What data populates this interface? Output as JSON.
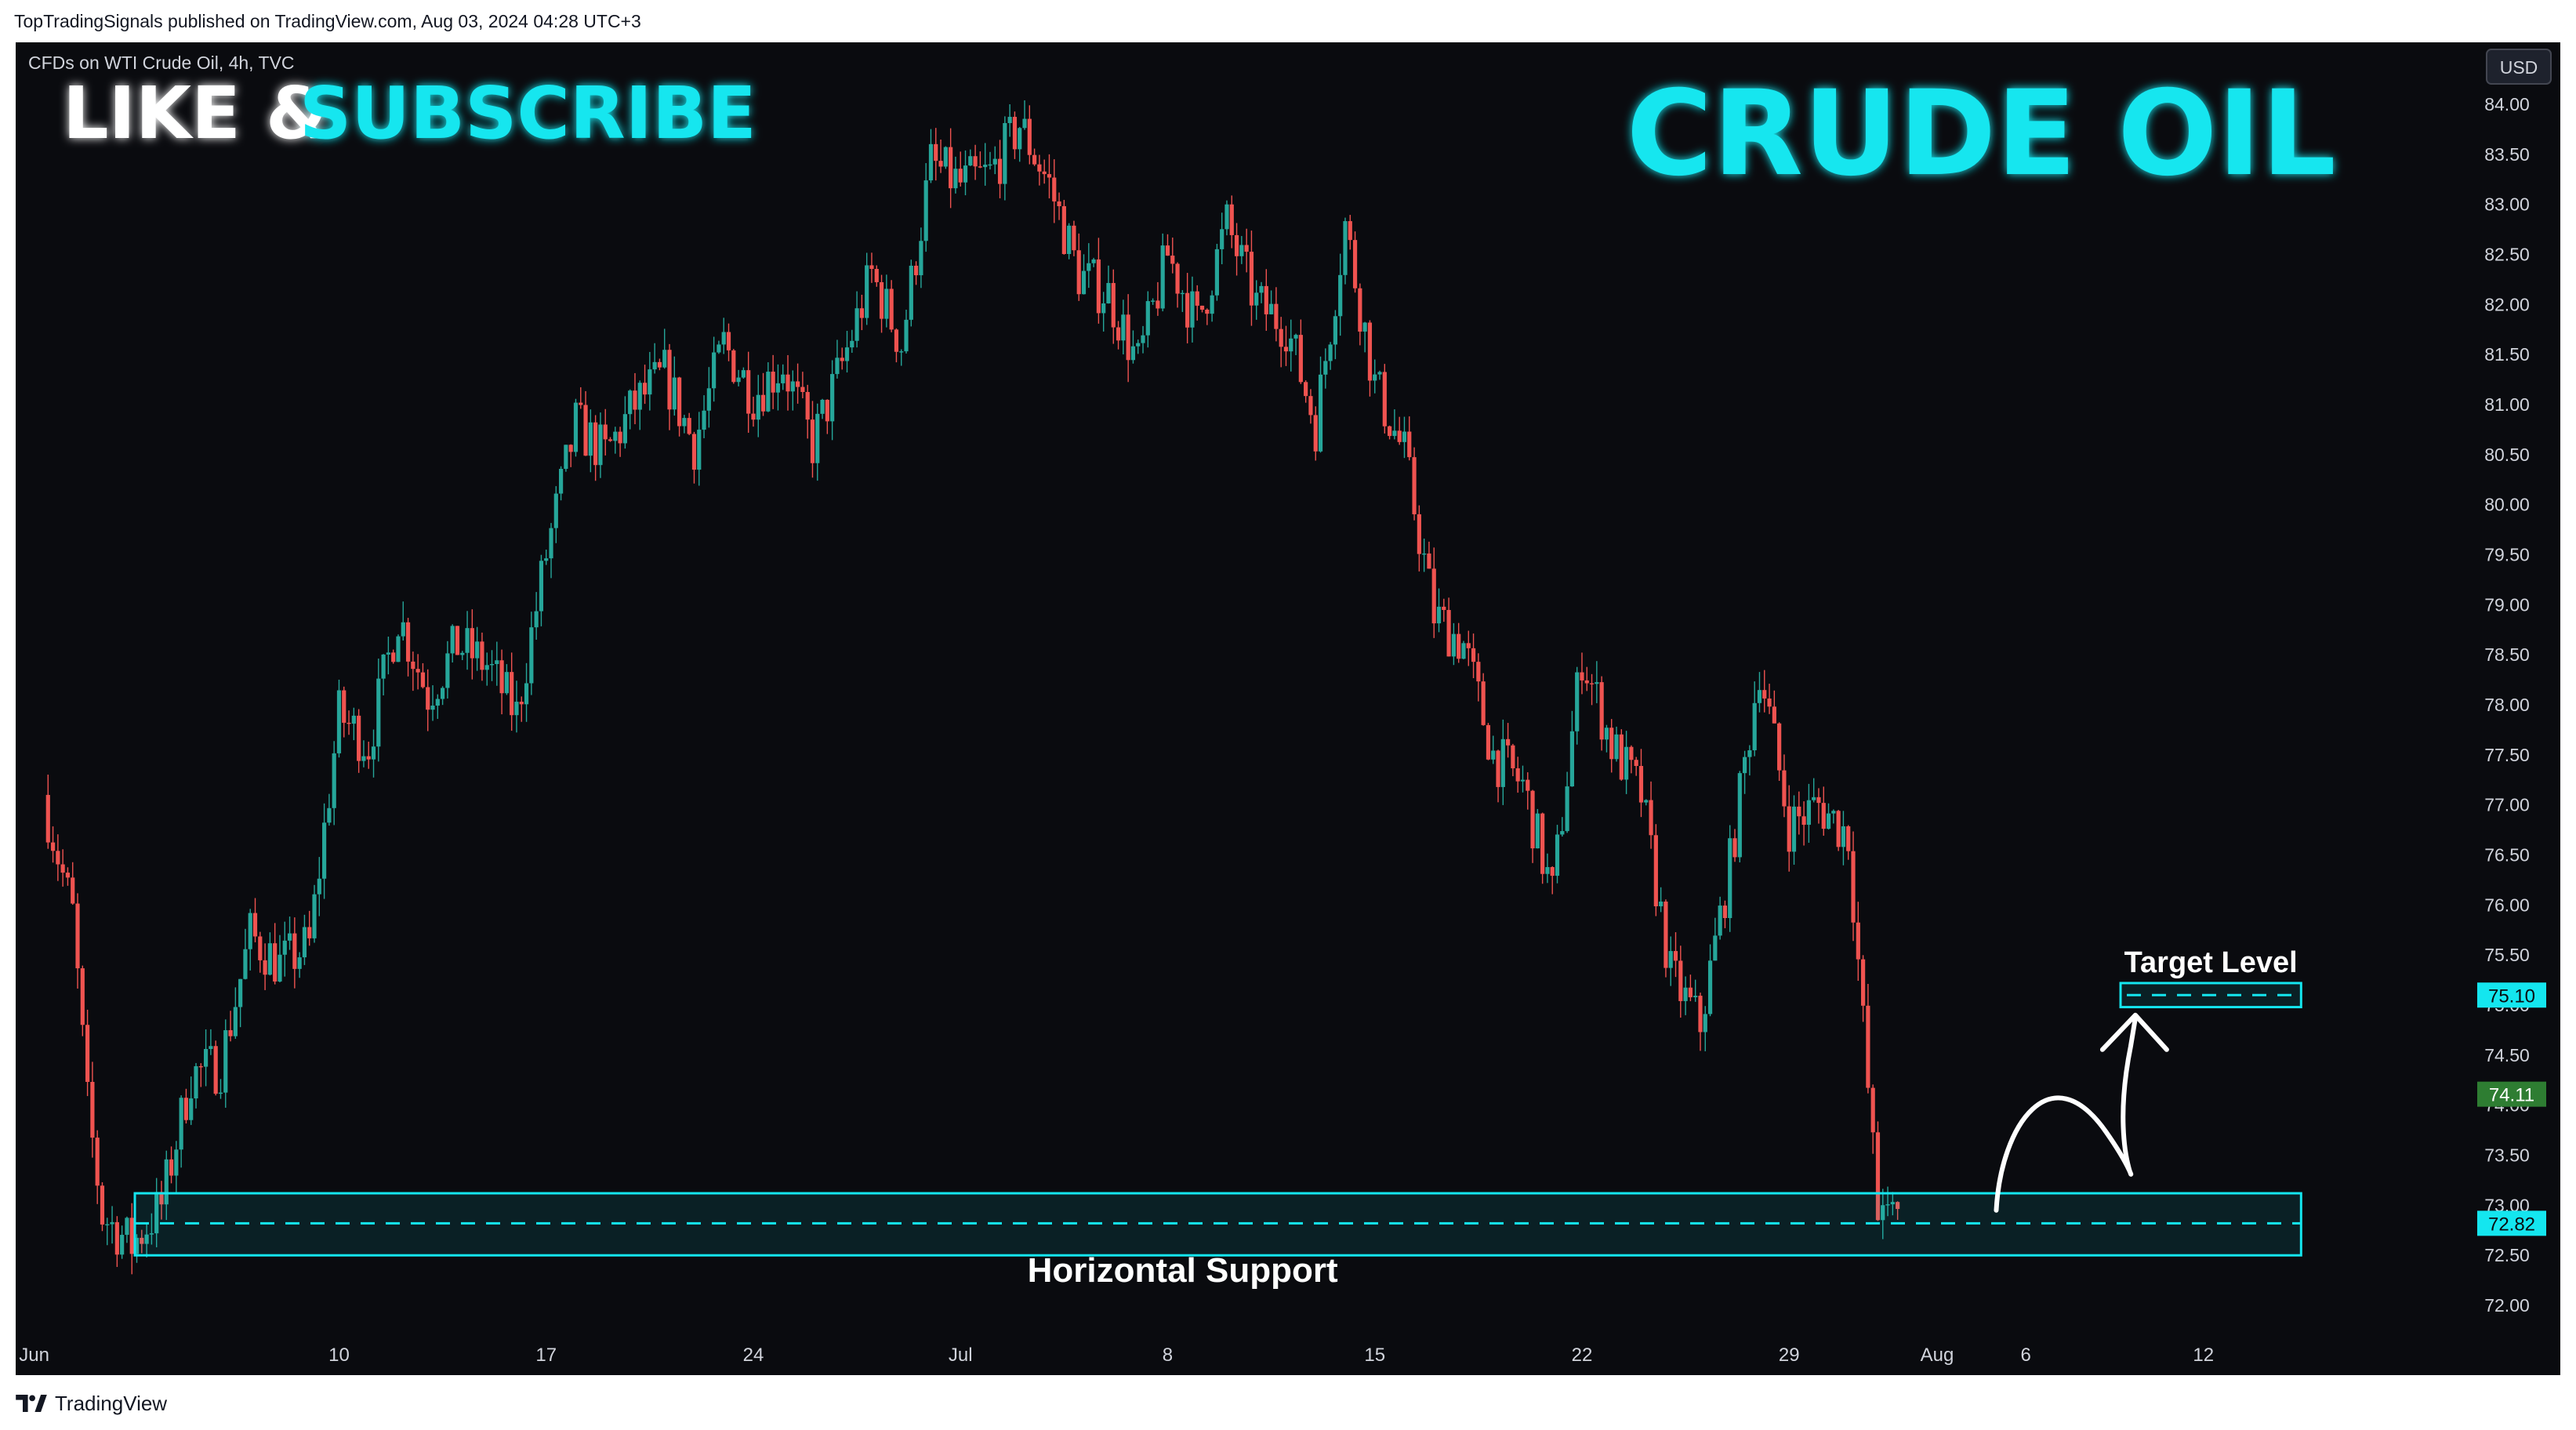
{
  "header": {
    "published": "TopTradingSignals published on TradingView.com, Aug 03, 2024 04:28 UTC+3"
  },
  "footer": {
    "brand": "TradingView"
  },
  "colors": {
    "background": "#0a0b0f",
    "up": "#26a69a",
    "down": "#ef5350",
    "accent": "#14e6ef",
    "text": "#d1d4dc"
  },
  "chart_data": {
    "type": "candlestick",
    "symbol_line": "CFDs on WTI Crude Oil, 4h, TVC",
    "currency": "USD",
    "promo_left": "LIKE &",
    "promo_right": "SUBSCRIBE",
    "title": "CRUDE OIL",
    "y_axis": {
      "min": 71.75,
      "max": 84.3,
      "ticks": [
        "84.00",
        "83.50",
        "83.00",
        "82.50",
        "82.00",
        "81.50",
        "81.00",
        "80.50",
        "80.00",
        "79.50",
        "79.00",
        "78.50",
        "78.00",
        "77.50",
        "77.00",
        "76.50",
        "76.00",
        "75.50",
        "75.00",
        "74.50",
        "74.00",
        "73.50",
        "73.00",
        "72.50",
        "72.00"
      ]
    },
    "x_axis": {
      "ticks": [
        {
          "label": "Jun",
          "d": -0.3
        },
        {
          "label": "10",
          "d": 10
        },
        {
          "label": "17",
          "d": 17
        },
        {
          "label": "24",
          "d": 24
        },
        {
          "label": "Jul",
          "d": 31
        },
        {
          "label": "8",
          "d": 38
        },
        {
          "label": "15",
          "d": 45
        },
        {
          "label": "22",
          "d": 52
        },
        {
          "label": "29",
          "d": 59
        },
        {
          "label": "Aug",
          "d": 64
        },
        {
          "label": "6",
          "d": 67
        },
        {
          "label": "12",
          "d": 73
        }
      ]
    },
    "price_labels": [
      {
        "value": "75.10",
        "price": 75.1,
        "style": "target"
      },
      {
        "value": "74.11",
        "price": 74.11,
        "style": "last"
      },
      {
        "value": "72.82",
        "price": 72.82,
        "style": "support"
      }
    ],
    "annotations": {
      "support_label": "Horizontal Support",
      "support_zone": {
        "from": 72.5,
        "to": 73.12,
        "dashed": 72.82,
        "start_d": 3.1,
        "end_d": 76.3
      },
      "target_label": "Target Level",
      "target_zone": {
        "from": 74.98,
        "to": 75.22,
        "dashed": 75.1,
        "start_d": 70.2,
        "end_d": 76.3
      },
      "path_start": {
        "d": 66.0,
        "price": 72.95
      },
      "path_end": {
        "d": 70.7,
        "price": 74.9
      }
    },
    "candles_note": "4h candles, daily close anchors; intraday path interpolated from the visible trend",
    "daily_close": [
      [
        2,
        72.9
      ],
      [
        3,
        72.6
      ],
      [
        4,
        73.0
      ],
      [
        5,
        74.3
      ],
      [
        6,
        74.4
      ],
      [
        7,
        75.7
      ],
      [
        8,
        75.4
      ],
      [
        9,
        75.6
      ],
      [
        10,
        77.9
      ],
      [
        11,
        77.6
      ],
      [
        12,
        78.9
      ],
      [
        13,
        78.1
      ],
      [
        14,
        78.6
      ],
      [
        15,
        78.4
      ],
      [
        16,
        77.9
      ],
      [
        17,
        79.5
      ],
      [
        18,
        80.8
      ],
      [
        19,
        80.5
      ],
      [
        20,
        81.0
      ],
      [
        21,
        81.3
      ],
      [
        22,
        80.6
      ],
      [
        23,
        81.6
      ],
      [
        24,
        81.1
      ],
      [
        25,
        81.4
      ],
      [
        26,
        80.6
      ],
      [
        27,
        81.4
      ],
      [
        28,
        82.3
      ],
      [
        29,
        81.6
      ],
      [
        30,
        83.4
      ],
      [
        31,
        83.2
      ],
      [
        32,
        83.3
      ],
      [
        33,
        83.8
      ],
      [
        34,
        83.2
      ],
      [
        35,
        82.3
      ],
      [
        36,
        82.1
      ],
      [
        37,
        81.4
      ],
      [
        38,
        82.5
      ],
      [
        39,
        81.8
      ],
      [
        40,
        82.8
      ],
      [
        41,
        82.0
      ],
      [
        42,
        81.8
      ],
      [
        43,
        80.8
      ],
      [
        44,
        82.8
      ],
      [
        45,
        81.2
      ],
      [
        46,
        80.5
      ],
      [
        47,
        78.9
      ],
      [
        48,
        78.6
      ],
      [
        49,
        77.5
      ],
      [
        50,
        77.2
      ],
      [
        51,
        76.1
      ],
      [
        52,
        78.5
      ],
      [
        53,
        77.6
      ],
      [
        54,
        77.1
      ],
      [
        55,
        75.3
      ],
      [
        56,
        74.8
      ],
      [
        57,
        76.4
      ],
      [
        58,
        78.4
      ],
      [
        59,
        76.8
      ],
      [
        60,
        77.0
      ],
      [
        61,
        76.7
      ],
      [
        62,
        72.9
      ],
      [
        62.7,
        74.11
      ]
    ]
  }
}
